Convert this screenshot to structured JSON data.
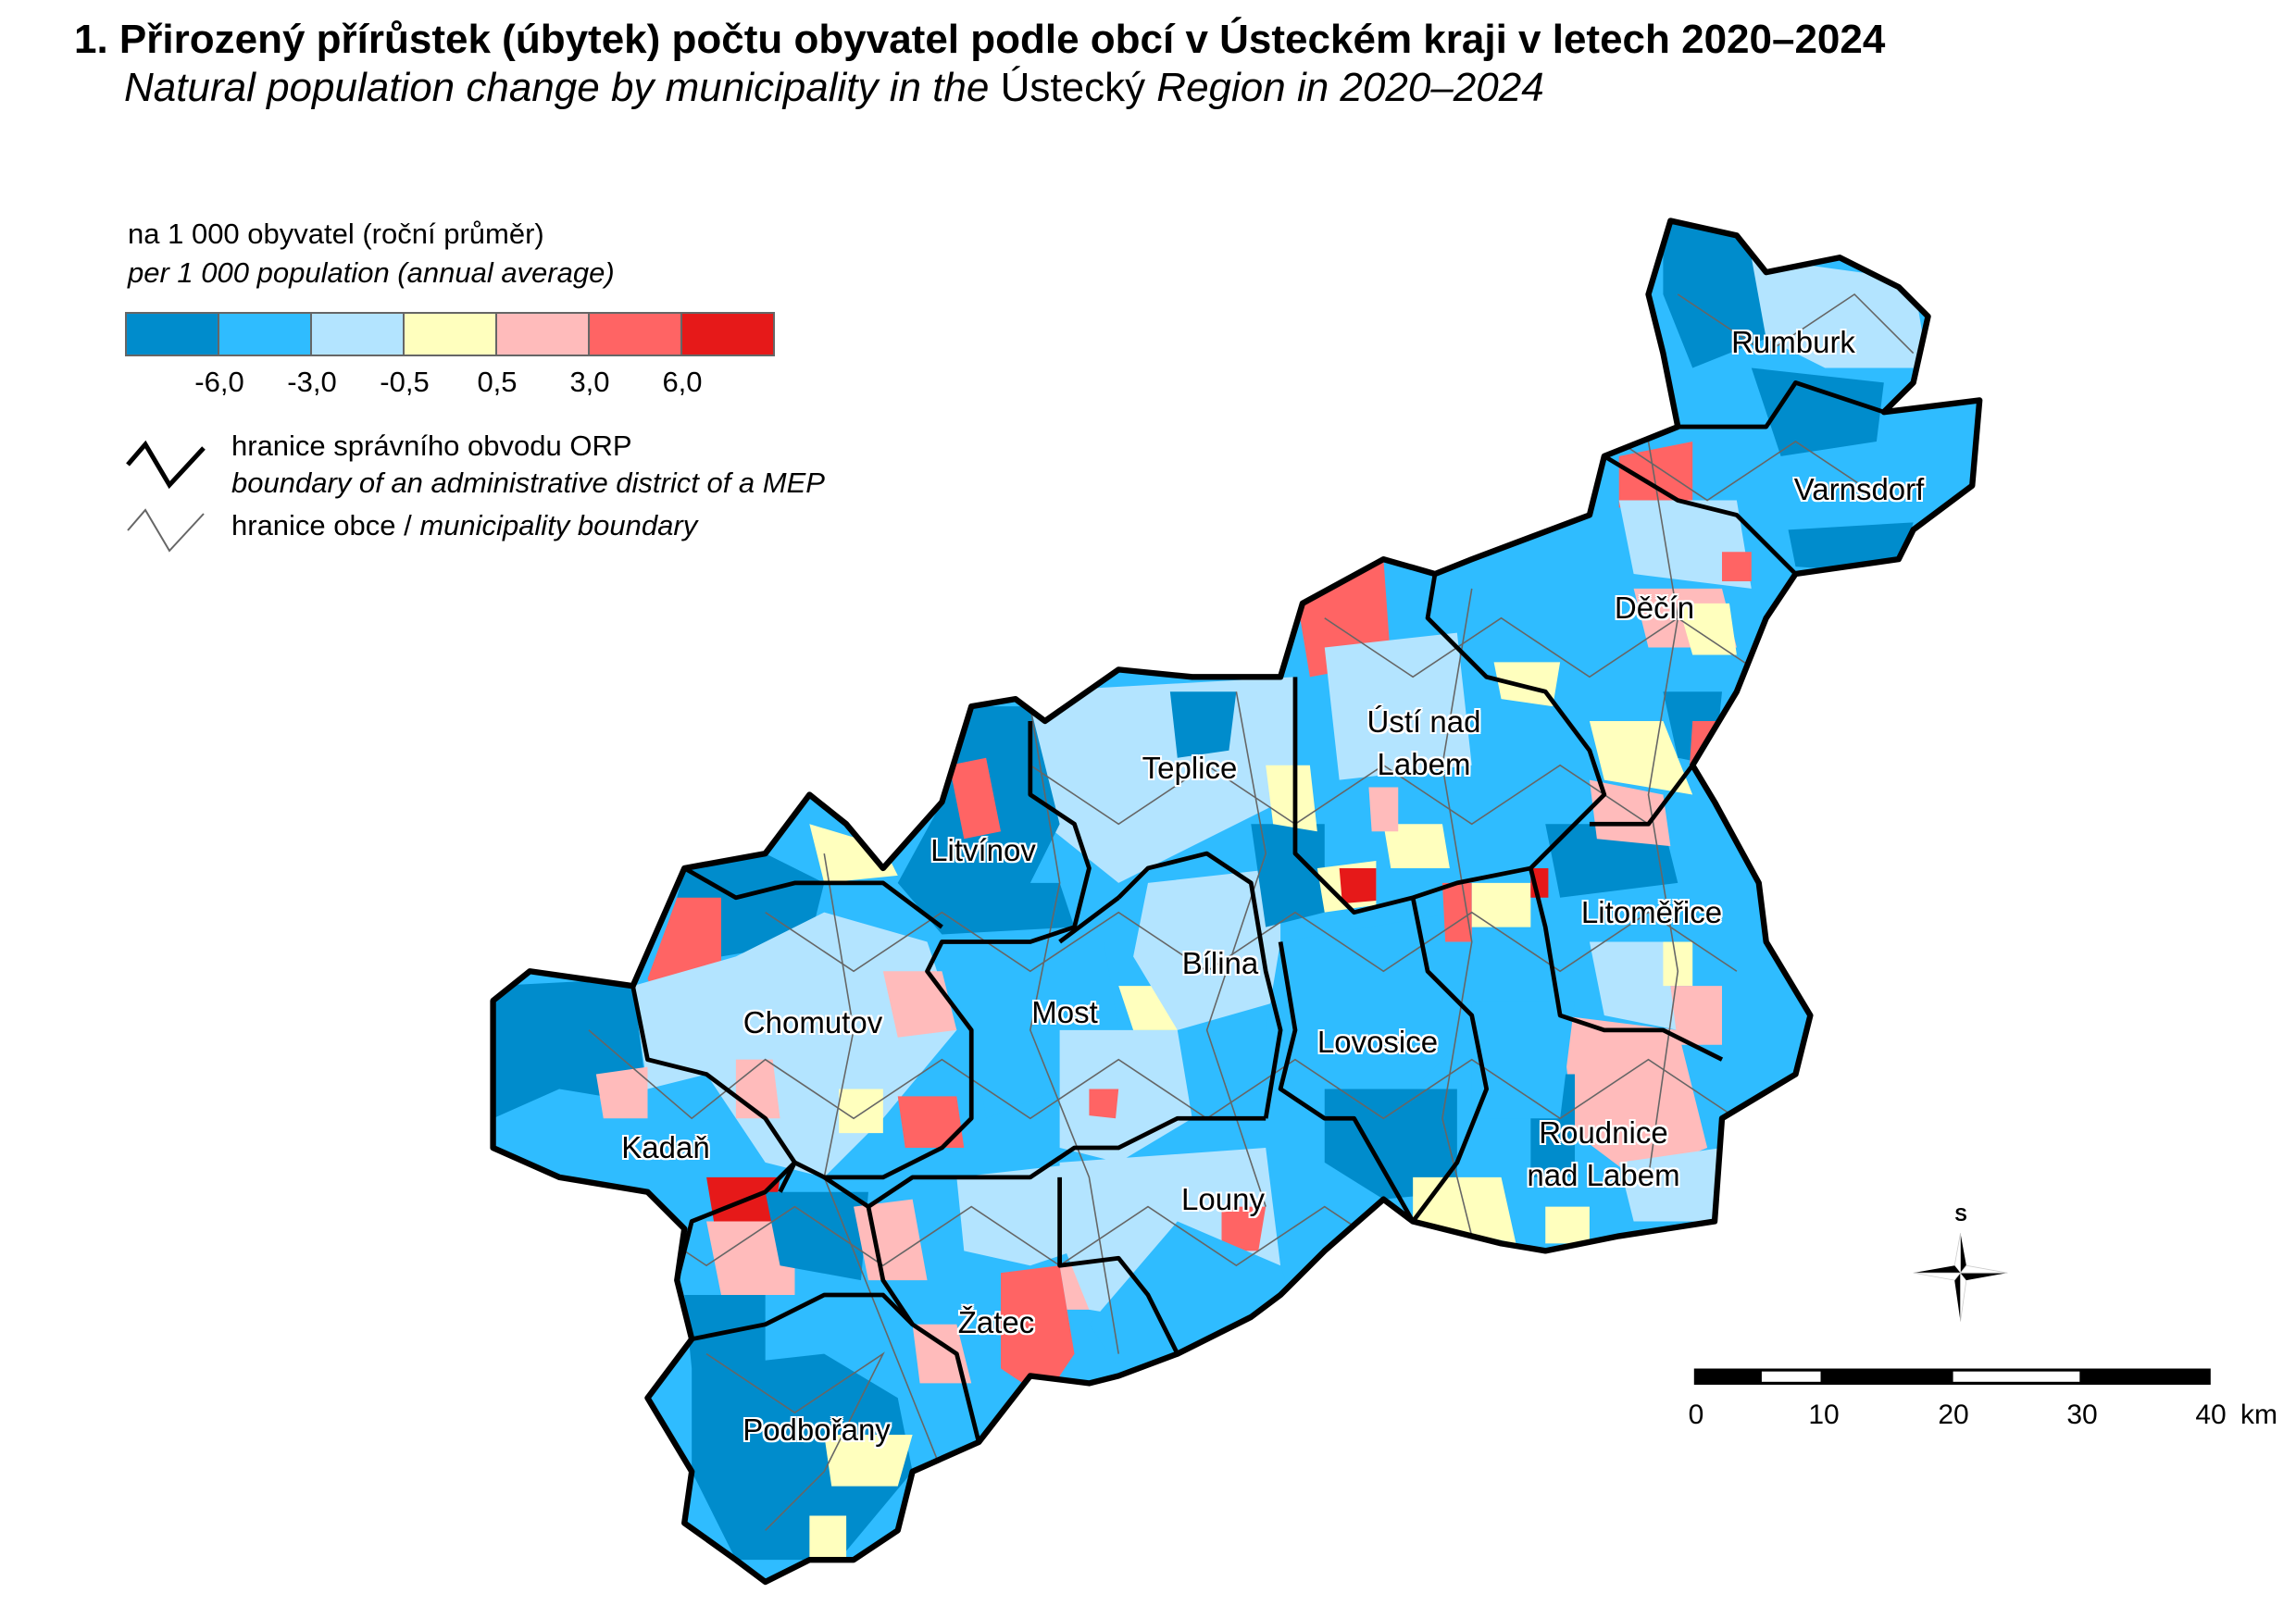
{
  "title": "1. Přirozený přírůstek (úbytek) počtu obyvatel podle obcí v Ústeckém kraji v letech 2020–2024",
  "subtitle": {
    "part1": "Natural population change by municipality in the ",
    "part2": "Ústecký",
    "part3": " Region in 2020–2024"
  },
  "legend": {
    "unit_cz": "na 1 000 obyvatel (roční průměr)",
    "unit_en": "per 1 000 population (annual average)",
    "colors": [
      "#008ccc",
      "#2fbcff",
      "#b3e4ff",
      "#ffffbe",
      "#ffbbbb",
      "#ff6464",
      "#e61919"
    ],
    "breaks": [
      "-6,0",
      "-3,0",
      "-0,5",
      "0,5",
      "3,0",
      "6,0"
    ],
    "orp_boundary_cz": "hranice správního obvodu ORP",
    "orp_boundary_en": "boundary of an administrative district of a MEP",
    "municipality_boundary_cz": "hranice obce / ",
    "municipality_boundary_en": "municipality boundary"
  },
  "orp_labels": {
    "rumburk": "Rumburk",
    "varnsdorf": "Varnsdorf",
    "decin": "Děčín",
    "usti_1": "Ústí nad",
    "usti_2": "Labem",
    "teplice": "Teplice",
    "litvinov": "Litvínov",
    "litomerice": "Litoměřice",
    "bilina": "Bílina",
    "most": "Most",
    "chomutov": "Chomutov",
    "lovosice": "Lovosice",
    "kadan": "Kadaň",
    "roudnice_1": "Roudnice",
    "roudnice_2": "nad Labem",
    "louny": "Louny",
    "zatec": "Žatec",
    "podborany": "Podbořany"
  },
  "compass": {
    "label": "S"
  },
  "scale": {
    "labels": [
      "0",
      "10",
      "20",
      "30",
      "40"
    ],
    "unit": "km"
  }
}
